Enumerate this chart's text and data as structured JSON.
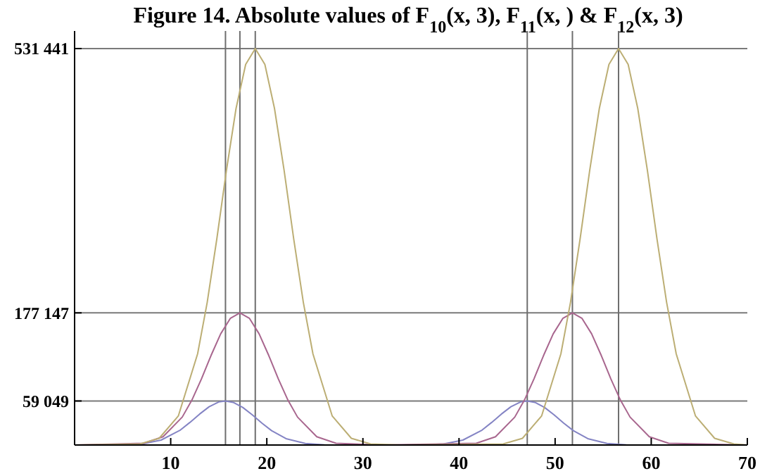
{
  "chart_data": {
    "type": "line",
    "title": "Figure 14. Absolute values of F$_{10}$(x, 3), F$_{11}$(x, ) & F$_{12}$(x, 3)",
    "xlim": [
      0,
      70
    ],
    "xticks": [
      10,
      20,
      30,
      40,
      50,
      60,
      70
    ],
    "ylim": [
      0,
      555000
    ],
    "yticks": [
      {
        "value": 59049,
        "label": "59 049"
      },
      {
        "value": 177147,
        "label": "177 147"
      },
      {
        "value": 531441,
        "label": "531 441"
      }
    ],
    "grid": "y",
    "marker": "none",
    "line_style": "solid",
    "series": [
      {
        "color": "#8484c4",
        "x": [
          0,
          5,
          7,
          9,
          11,
          12,
          13,
          14,
          15,
          15.7,
          16.5,
          17.5,
          18.5,
          19.5,
          20.5,
          22,
          24,
          26,
          30,
          36.4,
          38.4,
          40.4,
          42.4,
          43.4,
          44.4,
          45.4,
          46.4,
          47.1,
          47.9,
          48.9,
          49.9,
          50.9,
          51.9,
          53.4,
          55.4,
          57.4,
          62,
          70
        ],
        "values": [
          0,
          220,
          1460,
          6600,
          20000,
          30300,
          41400,
          51300,
          57700,
          59049,
          57200,
          50400,
          40300,
          29200,
          19200,
          8500,
          2060,
          330,
          0,
          220,
          1460,
          6600,
          20000,
          30300,
          41400,
          51300,
          57700,
          59049,
          57200,
          50400,
          40300,
          29200,
          19200,
          8500,
          2060,
          330,
          0,
          0
        ]
      },
      {
        "color": "#a8668e",
        "x": [
          0,
          7.2,
          9.2,
          11.2,
          12.2,
          13.2,
          14.2,
          15.2,
          16.2,
          17.2,
          18.2,
          19.2,
          20.2,
          21.2,
          22.2,
          23.2,
          25.2,
          27.2,
          32,
          41.8,
          43.8,
          45.8,
          46.8,
          47.8,
          48.8,
          49.8,
          50.8,
          51.8,
          52.8,
          53.8,
          54.8,
          55.8,
          56.8,
          57.8,
          59.8,
          61.8,
          70
        ],
        "values": [
          0,
          2340,
          11100,
          37400,
          60100,
          88600,
          120100,
          149000,
          169700,
          177147,
          169700,
          149000,
          120100,
          88600,
          60100,
          37400,
          11100,
          2340,
          0,
          2340,
          11100,
          37400,
          60100,
          88600,
          120100,
          149000,
          169700,
          177147,
          169700,
          149000,
          120100,
          88600,
          60100,
          37400,
          11100,
          2340,
          0
        ]
      },
      {
        "color": "#bcae74",
        "x": [
          0,
          6.8,
          8.8,
          10.8,
          12.8,
          13.8,
          14.8,
          15.8,
          16.8,
          17.8,
          18.8,
          19.8,
          20.8,
          21.8,
          22.8,
          23.8,
          24.8,
          26.8,
          28.8,
          30.8,
          34,
          44.6,
          46.6,
          48.6,
          50.6,
          51.6,
          52.6,
          53.6,
          54.6,
          55.6,
          56.6,
          57.6,
          58.6,
          59.6,
          60.6,
          61.6,
          62.6,
          64.6,
          66.6,
          68.6,
          70
        ],
        "values": [
          0,
          1490,
          8980,
          39100,
          122200,
          191300,
          276300,
          368300,
          451200,
          510200,
          531441,
          510200,
          451200,
          368300,
          276300,
          191300,
          122200,
          39100,
          8980,
          1490,
          0,
          1490,
          8980,
          39100,
          122200,
          191300,
          276300,
          368300,
          451200,
          510200,
          531441,
          510200,
          451200,
          368300,
          276300,
          191300,
          122200,
          39100,
          8980,
          1490,
          0
        ]
      }
    ],
    "ref_lines": [
      {
        "axis": "x",
        "value": 15.7,
        "color": "#6e6e6e"
      },
      {
        "axis": "x",
        "value": 17.2,
        "color": "#6e6e6e"
      },
      {
        "axis": "x",
        "value": 18.8,
        "color": "#6e6e6e"
      },
      {
        "axis": "x",
        "value": 47.1,
        "color": "#6e6e6e"
      },
      {
        "axis": "x",
        "value": 51.8,
        "color": "#6e6e6e"
      },
      {
        "axis": "x",
        "value": 56.6,
        "color": "#6e6e6e"
      }
    ]
  }
}
